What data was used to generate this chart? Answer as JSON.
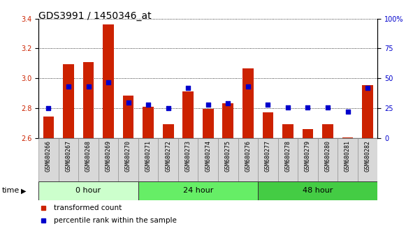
{
  "title": "GDS3991 / 1450346_at",
  "samples": [
    "GSM680266",
    "GSM680267",
    "GSM680268",
    "GSM680269",
    "GSM680270",
    "GSM680271",
    "GSM680272",
    "GSM680273",
    "GSM680274",
    "GSM680275",
    "GSM680276",
    "GSM680277",
    "GSM680278",
    "GSM680279",
    "GSM680280",
    "GSM680281",
    "GSM680282"
  ],
  "transformed_count": [
    2.745,
    3.095,
    3.11,
    3.36,
    2.885,
    2.81,
    2.695,
    2.915,
    2.795,
    2.835,
    3.065,
    2.775,
    2.695,
    2.66,
    2.695,
    2.605,
    2.955
  ],
  "percentile_rank": [
    25,
    43,
    43,
    47,
    30,
    28,
    25,
    42,
    28,
    29,
    43,
    28,
    26,
    26,
    26,
    22,
    42
  ],
  "groups": [
    {
      "label": "0 hour",
      "start": 0,
      "end": 5,
      "color": "#ccffcc"
    },
    {
      "label": "24 hour",
      "start": 5,
      "end": 11,
      "color": "#66ee66"
    },
    {
      "label": "48 hour",
      "start": 11,
      "end": 17,
      "color": "#44cc44"
    }
  ],
  "ylim_left": [
    2.6,
    3.4
  ],
  "ylim_right": [
    0,
    100
  ],
  "yticks_left": [
    2.6,
    2.8,
    3.0,
    3.2,
    3.4
  ],
  "yticks_right": [
    0,
    25,
    50,
    75,
    100
  ],
  "bar_color": "#cc2200",
  "dot_color": "#0000cc",
  "bar_width": 0.55,
  "grid_color": "#000000",
  "bg_color": "#ffffff",
  "plot_bg": "#ffffff",
  "sample_bg": "#d8d8d8",
  "xlabel_time": "time",
  "legend_tc": "transformed count",
  "legend_pr": "percentile rank within the sample",
  "title_fontsize": 10,
  "tick_fontsize": 7,
  "label_fontsize": 7.5
}
